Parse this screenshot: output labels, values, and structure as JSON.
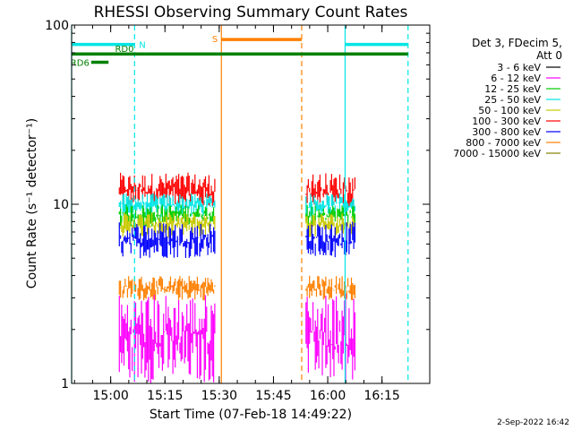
{
  "chart_data": {
    "type": "line",
    "title": "RHESSI Observing Summary Count Rates",
    "xlabel": "Start Time (07-Feb-18 14:49:22)",
    "ylabel": "Count Rate (s⁻¹ detector⁻¹)",
    "y_scale": "log",
    "ylim": [
      1,
      100
    ],
    "xlim_minutes": [
      14.82,
      16.47
    ],
    "x_ticks": [
      {
        "label": "15:00",
        "value": 15.0
      },
      {
        "label": "15:15",
        "value": 15.25
      },
      {
        "label": "15:30",
        "value": 15.5
      },
      {
        "label": "15:45",
        "value": 15.75
      },
      {
        "label": "16:00",
        "value": 16.0
      },
      {
        "label": "16:15",
        "value": 16.25
      }
    ],
    "y_ticks": [
      {
        "label": "1",
        "value": 1
      },
      {
        "label": "10",
        "value": 10
      },
      {
        "label": "100",
        "value": 100
      }
    ],
    "legend": {
      "header": [
        "Det 3, FDecim 5,",
        "Att 0"
      ],
      "placement": "right",
      "entries": [
        {
          "label": "3 - 6 keV",
          "color": "#000000"
        },
        {
          "label": "6 - 12 keV",
          "color": "#ff00ff"
        },
        {
          "label": "12 - 25 keV",
          "color": "#00cc00"
        },
        {
          "label": "25 - 50 keV",
          "color": "#00e5e5"
        },
        {
          "label": "50 - 100 keV",
          "color": "#c8c800"
        },
        {
          "label": "100 - 300 keV",
          "color": "#ff0000"
        },
        {
          "label": "300 - 800 keV",
          "color": "#0000ff"
        },
        {
          "label": "800 - 7000 keV",
          "color": "#ff8000"
        },
        {
          "label": "7000 - 15000 keV",
          "color": "#808000"
        }
      ]
    },
    "data_intervals": [
      {
        "start": 15.04,
        "end": 15.48
      },
      {
        "start": 15.9,
        "end": 16.13
      }
    ],
    "series_levels": [
      {
        "name": "100 - 300 keV",
        "color": "#ff0000",
        "low": 9.5,
        "high": 15
      },
      {
        "name": "25 - 50 keV",
        "color": "#00e5e5",
        "low": 8.5,
        "high": 11.5
      },
      {
        "name": "12 - 25 keV",
        "color": "#00cc00",
        "low": 7.5,
        "high": 10
      },
      {
        "name": "50 - 100 keV",
        "color": "#c8c800",
        "low": 6.5,
        "high": 9
      },
      {
        "name": "300 - 800 keV",
        "color": "#0000ff",
        "low": 5,
        "high": 8
      },
      {
        "name": "800 - 7000 keV",
        "color": "#ff8000",
        "low": 2.9,
        "high": 4
      },
      {
        "name": "6 - 12 keV",
        "color": "#ff00ff",
        "low": 1,
        "high": 3.2
      }
    ],
    "flags": [
      {
        "label": "N",
        "color": "#00e5e5",
        "y": 78,
        "start": 14.82,
        "end": 15.11
      },
      {
        "label": "N",
        "color": "#00e5e5",
        "y": 78,
        "start": 16.08,
        "end": 16.37
      },
      {
        "label": "RD0",
        "color": "#008000",
        "y": 69,
        "start": 14.82,
        "end": 16.37
      },
      {
        "label": "RD6",
        "color": "#008000",
        "y": 62,
        "start": 14.91,
        "end": 14.99
      },
      {
        "label": "S",
        "color": "#ff8000",
        "y": 83,
        "start": 15.51,
        "end": 15.88
      }
    ],
    "markers": [
      {
        "x": 14.82,
        "color": "#00e5e5",
        "style": "solid"
      },
      {
        "x": 15.11,
        "color": "#00e5e5",
        "style": "dashed"
      },
      {
        "x": 15.51,
        "color": "#ff8000",
        "style": "solid"
      },
      {
        "x": 15.88,
        "color": "#ff8000",
        "style": "dashed"
      },
      {
        "x": 16.08,
        "color": "#00e5e5",
        "style": "solid"
      },
      {
        "x": 16.37,
        "color": "#00e5e5",
        "style": "dashed"
      }
    ],
    "footer": "2-Sep-2022 16:42"
  }
}
